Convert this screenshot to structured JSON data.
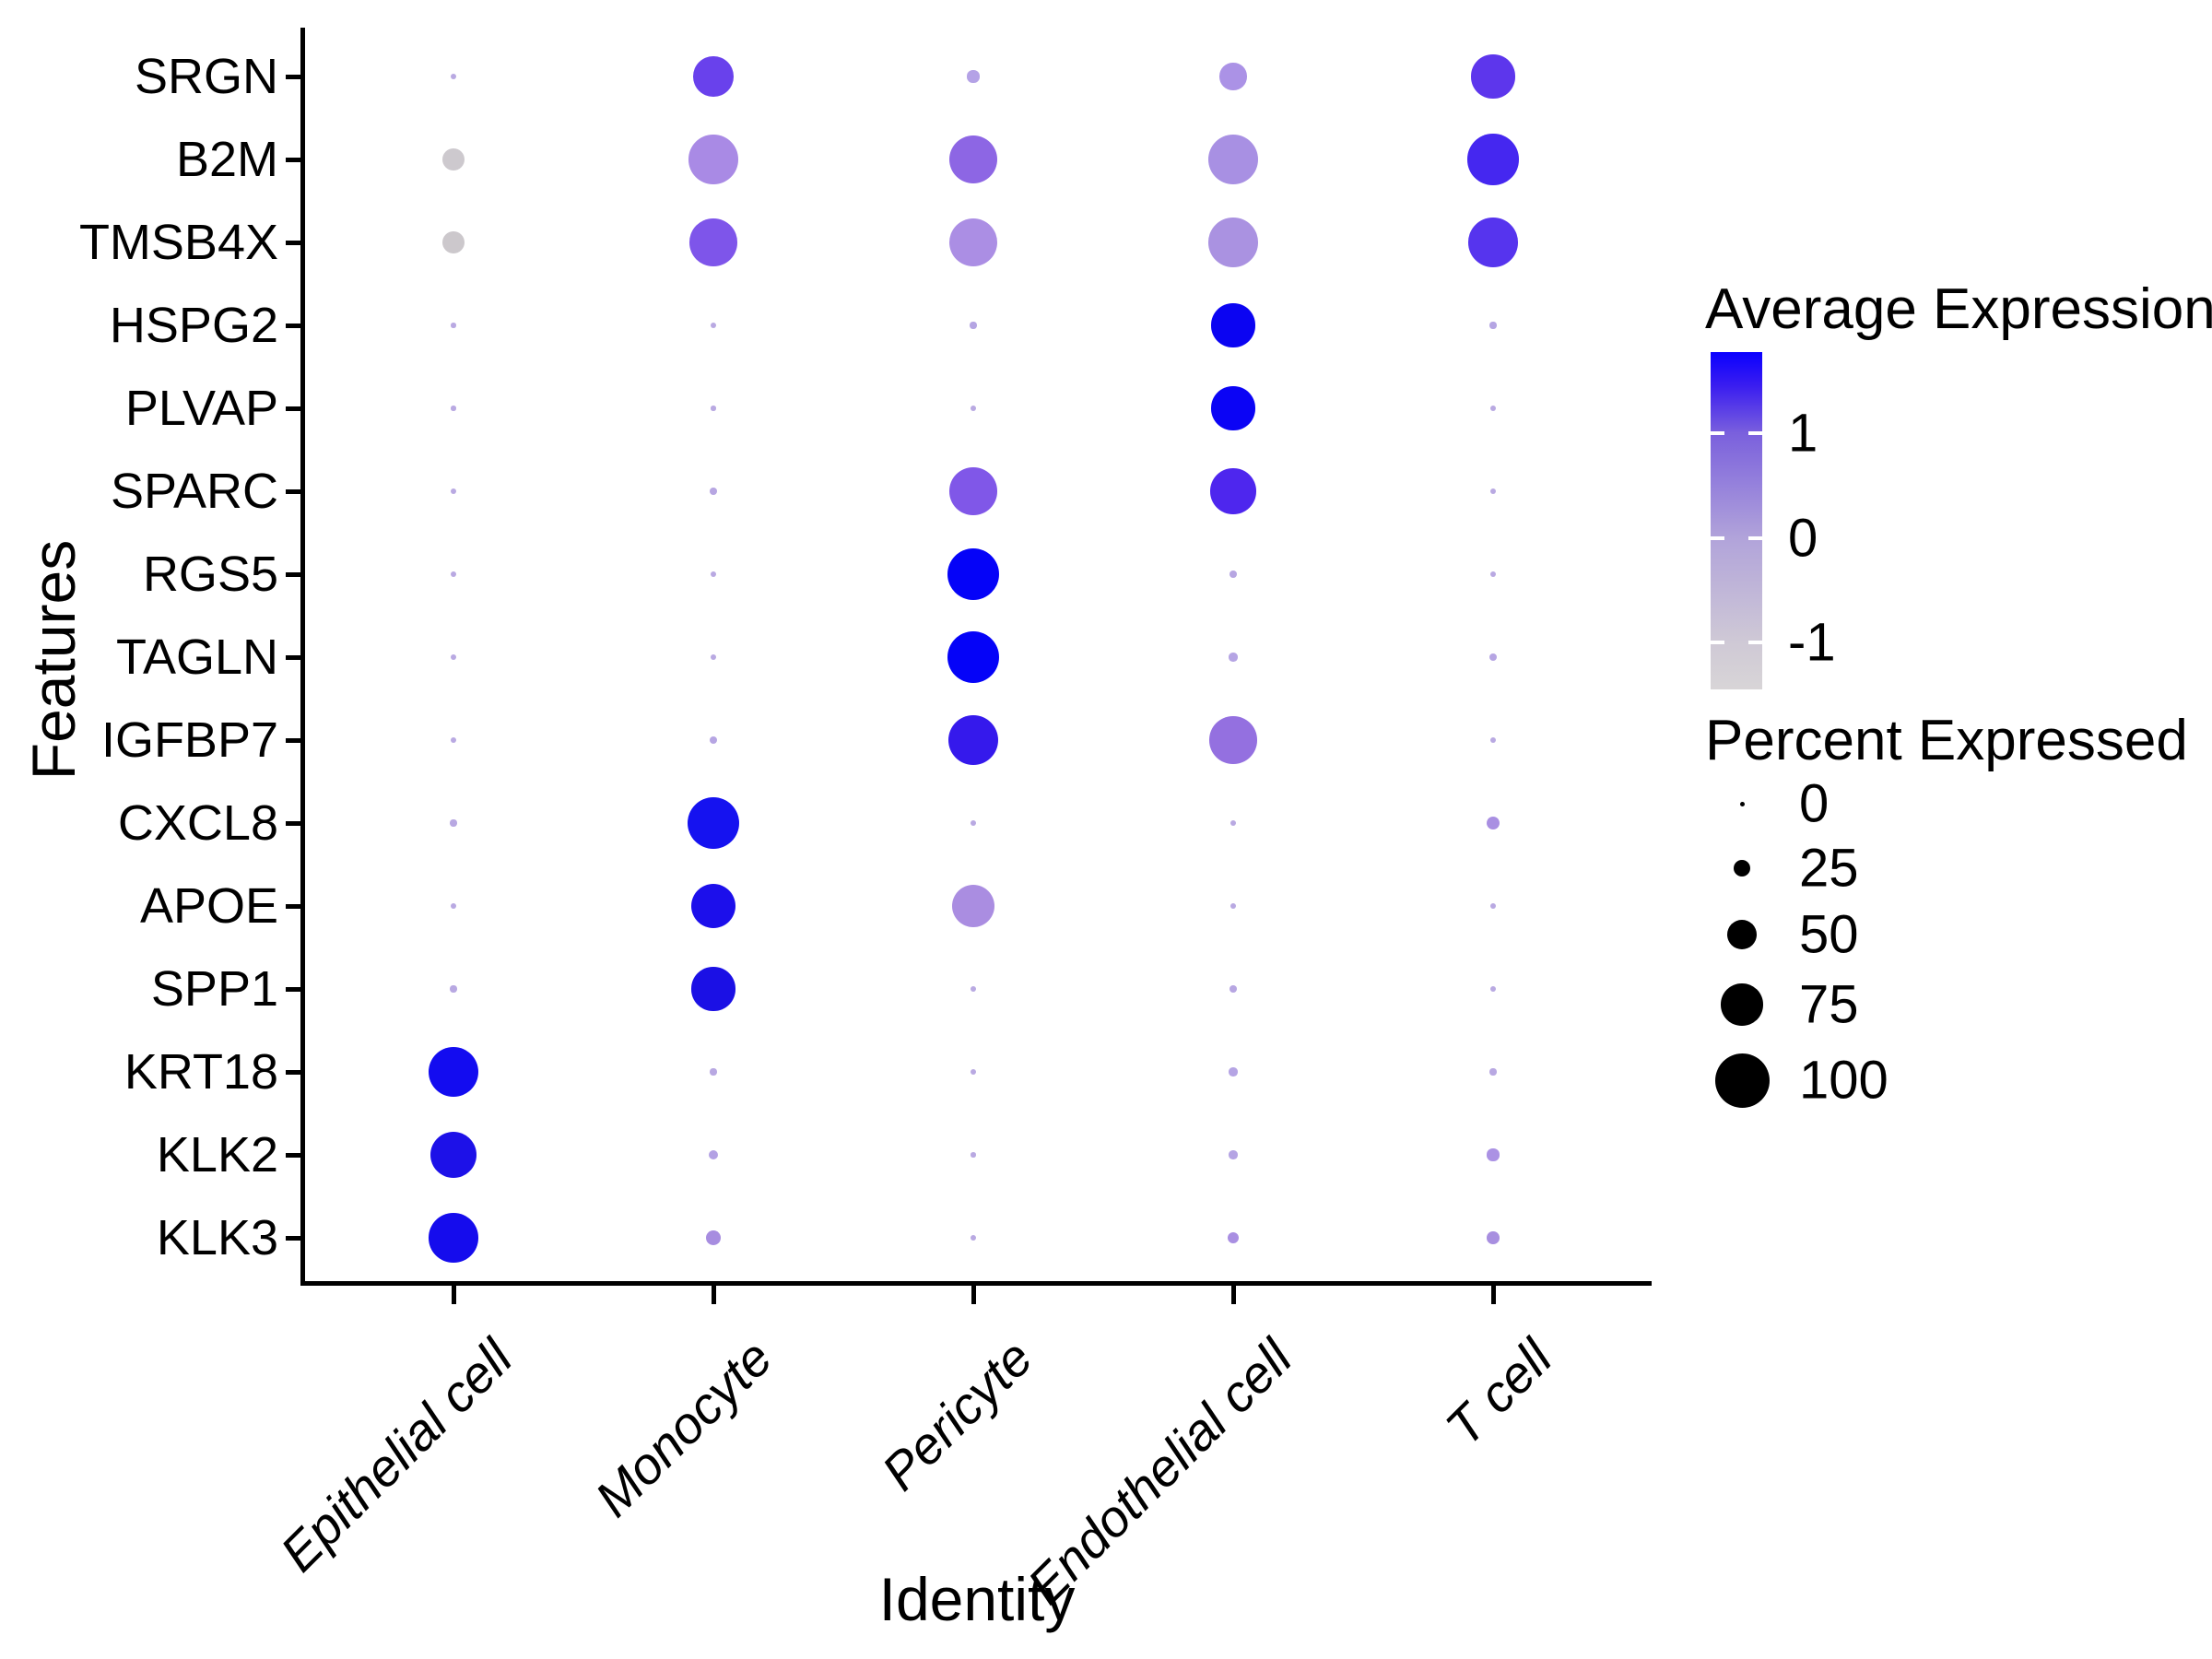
{
  "chart_data": {
    "type": "scatter",
    "subtype": "dot-plot-bubble-grid",
    "title": "",
    "xlabel": "Identity",
    "ylabel": "Features",
    "x_categories": [
      "Epithelial cell",
      "Monocyte",
      "Pericyte",
      "Endothelial cell",
      "T cell"
    ],
    "y_categories": [
      "SRGN",
      "B2M",
      "TMSB4X",
      "HSPG2",
      "PLVAP",
      "SPARC",
      "RGS5",
      "TAGLN",
      "IGFBP7",
      "CXCL8",
      "APOE",
      "SPP1",
      "KRT18",
      "KLK2",
      "KLK3"
    ],
    "encoding": {
      "size": "Percent Expressed (0-100)",
      "color": "Average Expression (scaled)"
    },
    "grid": false,
    "rows": [
      {
        "gene": "SRGN",
        "dots": [
          {
            "pct": 2,
            "avg": 0,
            "color": "#b9a9e2"
          },
          {
            "pct": 72,
            "avg": 0.85,
            "color": "#6941ec"
          },
          {
            "pct": 15,
            "avg": 0.05,
            "color": "#b4a2e6"
          },
          {
            "pct": 45,
            "avg": 0.2,
            "color": "#ab92e6"
          },
          {
            "pct": 78,
            "avg": 0.95,
            "color": "#5d36ec"
          }
        ]
      },
      {
        "gene": "B2M",
        "dots": [
          {
            "pct": 36,
            "avg": -1,
            "color": "#cdc9ce"
          },
          {
            "pct": 90,
            "avg": 0.3,
            "color": "#a98ae5"
          },
          {
            "pct": 88,
            "avg": 0.55,
            "color": "#8d66e4"
          },
          {
            "pct": 92,
            "avg": 0.25,
            "color": "#a890e3"
          },
          {
            "pct": 93,
            "avg": 1.1,
            "color": "#4527f0"
          }
        ]
      },
      {
        "gene": "TMSB4X",
        "dots": [
          {
            "pct": 36,
            "avg": -1,
            "color": "#ccc8cc"
          },
          {
            "pct": 86,
            "avg": 0.7,
            "color": "#7e55ea"
          },
          {
            "pct": 88,
            "avg": 0.2,
            "color": "#ab8ee4"
          },
          {
            "pct": 90,
            "avg": 0.2,
            "color": "#aa92e1"
          },
          {
            "pct": 90,
            "avg": 1.0,
            "color": "#5634ee"
          }
        ]
      },
      {
        "gene": "HSPG2",
        "dots": [
          {
            "pct": 1,
            "avg": 0,
            "color": "#b9a9e2"
          },
          {
            "pct": 2,
            "avg": 0,
            "color": "#b9a9e2"
          },
          {
            "pct": 4,
            "avg": 0,
            "color": "#b5a5e3"
          },
          {
            "pct": 78,
            "avg": 1.55,
            "color": "#0b04f2"
          },
          {
            "pct": 4,
            "avg": 0,
            "color": "#b5a5e3"
          }
        ]
      },
      {
        "gene": "PLVAP",
        "dots": [
          {
            "pct": 1,
            "avg": 0,
            "color": "#b9a9e2"
          },
          {
            "pct": 1,
            "avg": 0,
            "color": "#b9a9e2"
          },
          {
            "pct": 2,
            "avg": 0,
            "color": "#b9a9e2"
          },
          {
            "pct": 78,
            "avg": 1.55,
            "color": "#0b04f5"
          },
          {
            "pct": 3,
            "avg": 0,
            "color": "#b9a9e2"
          }
        ]
      },
      {
        "gene": "SPARC",
        "dots": [
          {
            "pct": 2,
            "avg": 0,
            "color": "#b9a9e2"
          },
          {
            "pct": 5,
            "avg": 0,
            "color": "#b7a6e2"
          },
          {
            "pct": 86,
            "avg": 0.7,
            "color": "#8057e8"
          },
          {
            "pct": 82,
            "avg": 1.05,
            "color": "#4e26ee"
          },
          {
            "pct": 2,
            "avg": 0,
            "color": "#b9a9e2"
          }
        ]
      },
      {
        "gene": "RGS5",
        "dots": [
          {
            "pct": 2,
            "avg": 0,
            "color": "#b9a9e2"
          },
          {
            "pct": 3,
            "avg": 0,
            "color": "#b9a9e2"
          },
          {
            "pct": 95,
            "avg": 1.6,
            "color": "#0503f8"
          },
          {
            "pct": 5,
            "avg": 0,
            "color": "#b7a6e2"
          },
          {
            "pct": 3,
            "avg": 0,
            "color": "#b9a9e2"
          }
        ]
      },
      {
        "gene": "TAGLN",
        "dots": [
          {
            "pct": 3,
            "avg": 0,
            "color": "#b9a9e2"
          },
          {
            "pct": 3,
            "avg": 0,
            "color": "#b9a9e2"
          },
          {
            "pct": 95,
            "avg": 1.6,
            "color": "#0503f8"
          },
          {
            "pct": 8,
            "avg": 0.05,
            "color": "#b5a4e4"
          },
          {
            "pct": 6,
            "avg": 0,
            "color": "#b6a5e3"
          }
        ]
      },
      {
        "gene": "IGFBP7",
        "dots": [
          {
            "pct": 3,
            "avg": 0,
            "color": "#b9a9e2"
          },
          {
            "pct": 6,
            "avg": 0,
            "color": "#b6a5e3"
          },
          {
            "pct": 92,
            "avg": 1.2,
            "color": "#3519ec"
          },
          {
            "pct": 86,
            "avg": 0.45,
            "color": "#9470e0"
          },
          {
            "pct": 3,
            "avg": 0,
            "color": "#b9a9e2"
          }
        ]
      },
      {
        "gene": "CXCL8",
        "dots": [
          {
            "pct": 4,
            "avg": 0,
            "color": "#b8a8e2"
          },
          {
            "pct": 95,
            "avg": 1.45,
            "color": "#1512f0"
          },
          {
            "pct": 3,
            "avg": 0,
            "color": "#b9a9e2"
          },
          {
            "pct": 3,
            "avg": 0,
            "color": "#b9a9e2"
          },
          {
            "pct": 18,
            "avg": 0.2,
            "color": "#a98fe2"
          }
        ]
      },
      {
        "gene": "APOE",
        "dots": [
          {
            "pct": 3,
            "avg": 0,
            "color": "#b9a9e2"
          },
          {
            "pct": 80,
            "avg": 1.45,
            "color": "#1c0feb"
          },
          {
            "pct": 76,
            "avg": 0.2,
            "color": "#aa8de1"
          },
          {
            "pct": 3,
            "avg": 0,
            "color": "#b9a9e2"
          },
          {
            "pct": 2,
            "avg": 0,
            "color": "#b9a9e2"
          }
        ]
      },
      {
        "gene": "SPP1",
        "dots": [
          {
            "pct": 4,
            "avg": 0,
            "color": "#b8a8e2"
          },
          {
            "pct": 78,
            "avg": 1.4,
            "color": "#1b10e5"
          },
          {
            "pct": 3,
            "avg": 0,
            "color": "#b9a9e2"
          },
          {
            "pct": 5,
            "avg": 0,
            "color": "#b7a6e2"
          },
          {
            "pct": 2,
            "avg": 0,
            "color": "#b9a9e2"
          }
        ]
      },
      {
        "gene": "KRT18",
        "dots": [
          {
            "pct": 92,
            "avg": 1.5,
            "color": "#130cf0"
          },
          {
            "pct": 4,
            "avg": 0,
            "color": "#b8a8e2"
          },
          {
            "pct": 2,
            "avg": 0,
            "color": "#b9a9e2"
          },
          {
            "pct": 8,
            "avg": 0.05,
            "color": "#b5a4e4"
          },
          {
            "pct": 4,
            "avg": 0,
            "color": "#b8a8e2"
          }
        ]
      },
      {
        "gene": "KLK2",
        "dots": [
          {
            "pct": 84,
            "avg": 1.4,
            "color": "#1d11e8"
          },
          {
            "pct": 10,
            "avg": 0.1,
            "color": "#b3a1e4"
          },
          {
            "pct": 1,
            "avg": 0,
            "color": "#b9a9e2"
          },
          {
            "pct": 8,
            "avg": 0.05,
            "color": "#b5a4e4"
          },
          {
            "pct": 15,
            "avg": 0.2,
            "color": "#ab92e4"
          }
        ]
      },
      {
        "gene": "KLK3",
        "dots": [
          {
            "pct": 90,
            "avg": 1.5,
            "color": "#150ced"
          },
          {
            "pct": 20,
            "avg": 0.15,
            "color": "#a78de0"
          },
          {
            "pct": 3,
            "avg": 0,
            "color": "#b9a9e2"
          },
          {
            "pct": 14,
            "avg": 0.2,
            "color": "#a98fe2"
          },
          {
            "pct": 16,
            "avg": 0.2,
            "color": "#a88fe0"
          }
        ]
      }
    ],
    "legend_position": "right"
  },
  "legend": {
    "color": {
      "title": "Average Expression",
      "domain": [
        -1.45,
        1.78
      ],
      "ticks": [
        {
          "label": "1",
          "value": 1
        },
        {
          "label": "0",
          "value": 0
        },
        {
          "label": "-1",
          "value": -1
        }
      ],
      "gradient_stops": [
        {
          "frac": 0.0,
          "color": "#0a00ff"
        },
        {
          "frac": 0.1,
          "color": "#3a1df0"
        },
        {
          "frac": 0.24,
          "color": "#7a60dd"
        },
        {
          "frac": 0.55,
          "color": "#b1a3da"
        },
        {
          "frac": 0.86,
          "color": "#cfc9d6"
        },
        {
          "frac": 1.0,
          "color": "#d8d5d7"
        }
      ]
    },
    "size": {
      "title": "Percent Expressed",
      "entries": [
        {
          "label": "0",
          "pct": 0
        },
        {
          "label": "25",
          "pct": 25
        },
        {
          "label": "50",
          "pct": 50
        },
        {
          "label": "75",
          "pct": 75
        },
        {
          "label": "100",
          "pct": 100
        }
      ],
      "dot_color": "#000000"
    }
  },
  "colors": {
    "background": "#ffffff",
    "axis": "#000000",
    "text": "#000000",
    "max_expression_blue": "#0000ff",
    "min_expression_grey": "#d8d5d7"
  }
}
